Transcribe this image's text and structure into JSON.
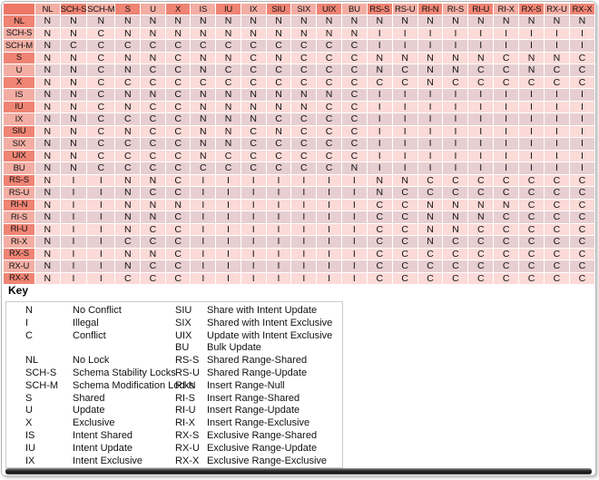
{
  "colors": {
    "corner_cell": "#ee7767",
    "header_dark": "#ef8474",
    "header_light": "#f3aea4",
    "row_stripe_pink": "#fbdad7",
    "row_stripe_gray": "#e7ced1",
    "grid_line": "#ffffff",
    "key_box_border": "#cccccc",
    "page_border": "#b4b4b4"
  },
  "matrix": {
    "columns": [
      "NL",
      "SCH-S",
      "SCH-M",
      "S",
      "U",
      "X",
      "IS",
      "IU",
      "IX",
      "SIU",
      "SIX",
      "UIX",
      "BU",
      "RS-S",
      "RS-U",
      "RI-N",
      "RI-S",
      "RI-U",
      "RI-X",
      "RX-S",
      "RX-U",
      "RX-X"
    ],
    "dark_columns": [
      "SCH-S",
      "S",
      "X",
      "IU",
      "SIU",
      "UIX",
      "RS-S",
      "RI-N",
      "RI-U",
      "RX-S",
      "RX-X"
    ],
    "dark_rows": [
      "NL",
      "S",
      "X",
      "IU",
      "SIU",
      "UIX",
      "RS-S",
      "RI-N",
      "RI-U",
      "RX-S",
      "RX-X"
    ],
    "cell_legend": {
      "N": "No Conflict",
      "I": "Illegal",
      "C": "Conflict"
    },
    "rows": [
      {
        "label": "NL",
        "values": "NNNNNNNNNNNNNNNNNNNNNN"
      },
      {
        "label": "SCH-S",
        "values": "NNCNNNNNNNNNNIIIIIIIII"
      },
      {
        "label": "SCH-M",
        "values": "NCCCCCCCCCCCCIIIIIIIII"
      },
      {
        "label": "S",
        "values": "NNCNNCNNCNCCCNNNNNCNNC"
      },
      {
        "label": "U",
        "values": "NNCNCCNCCCCCCNCNNCCNCC"
      },
      {
        "label": "X",
        "values": "NNCCCCCCCCCCCCCNCCCCCC"
      },
      {
        "label": "IS",
        "values": "NNCNNCNNNNNNCIIIIIIIII"
      },
      {
        "label": "IU",
        "values": "NNCNCCNNNNNCCIIIIIIIII"
      },
      {
        "label": "IX",
        "values": "NNCCCCNNNCCCCIIIIIIIII"
      },
      {
        "label": "SIU",
        "values": "NNCNCCNNCNCCCIIIIIIIII"
      },
      {
        "label": "SIX",
        "values": "NNCCCCNNCCCCCIIIIIIIII"
      },
      {
        "label": "UIX",
        "values": "NNCCCCNCCCCCCIIIIIIIII"
      },
      {
        "label": "BU",
        "values": "NNCCCCCCCCCCNIIIIIIIII"
      },
      {
        "label": "RS-S",
        "values": "NIINNCIIIIIIINNCCCCCCC"
      },
      {
        "label": "RS-U",
        "values": "NIINCCIIIIIIINCCCCCCCC"
      },
      {
        "label": "RI-N",
        "values": "NIINNNIIIIIIICCNNNNCCC"
      },
      {
        "label": "RI-S",
        "values": "NIINNCIIIIIIICCNNNCCCC"
      },
      {
        "label": "RI-U",
        "values": "NIINCCIIIIIIICCNNCCCCC"
      },
      {
        "label": "RI-X",
        "values": "NIICCCIIIIIIICCNCCCCCC"
      },
      {
        "label": "RX-S",
        "values": "NIINNCIIIIIIICCCCCCCCC"
      },
      {
        "label": "RX-U",
        "values": "NIINCCIIIIIIICCCCCCCCC"
      },
      {
        "label": "RX-X",
        "values": "NIICCCIIIIIIICCCCCCCCC"
      }
    ]
  },
  "key": {
    "heading": "Key",
    "left": [
      {
        "abbr": "N",
        "desc": "No Conflict"
      },
      {
        "abbr": "I",
        "desc": "Illegal"
      },
      {
        "abbr": "C",
        "desc": "Conflict"
      },
      {
        "abbr": "",
        "desc": ""
      },
      {
        "abbr": "NL",
        "desc": "No Lock"
      },
      {
        "abbr": "SCH-S",
        "desc": "Schema Stability Locks"
      },
      {
        "abbr": "SCH-M",
        "desc": "Schema Modification Locks"
      },
      {
        "abbr": "S",
        "desc": "Shared"
      },
      {
        "abbr": "U",
        "desc": "Update"
      },
      {
        "abbr": "X",
        "desc": "Exclusive"
      },
      {
        "abbr": "IS",
        "desc": "Intent Shared"
      },
      {
        "abbr": "IU",
        "desc": "Intent Update"
      },
      {
        "abbr": "IX",
        "desc": "Intent Exclusive"
      }
    ],
    "right": [
      {
        "abbr": "SIU",
        "desc": "Share with Intent Update"
      },
      {
        "abbr": "SIX",
        "desc": "Shared with Intent Exclusive"
      },
      {
        "abbr": "UIX",
        "desc": "Update with Intent Exclusive"
      },
      {
        "abbr": "BU",
        "desc": "Bulk Update"
      },
      {
        "abbr": "RS-S",
        "desc": "Shared Range-Shared"
      },
      {
        "abbr": "RS-U",
        "desc": "Shared Range-Update"
      },
      {
        "abbr": "RI-N",
        "desc": "Insert Range-Null"
      },
      {
        "abbr": "RI-S",
        "desc": "Insert Range-Shared"
      },
      {
        "abbr": "RI-U",
        "desc": "Insert Range-Update"
      },
      {
        "abbr": "RI-X",
        "desc": "Insert Range-Exclusive"
      },
      {
        "abbr": "RX-S",
        "desc": "Exclusive Range-Shared"
      },
      {
        "abbr": "RX-U",
        "desc": "Exclusive Range-Update"
      },
      {
        "abbr": "RX-X",
        "desc": "Exclusive Range-Exclusive"
      }
    ]
  }
}
